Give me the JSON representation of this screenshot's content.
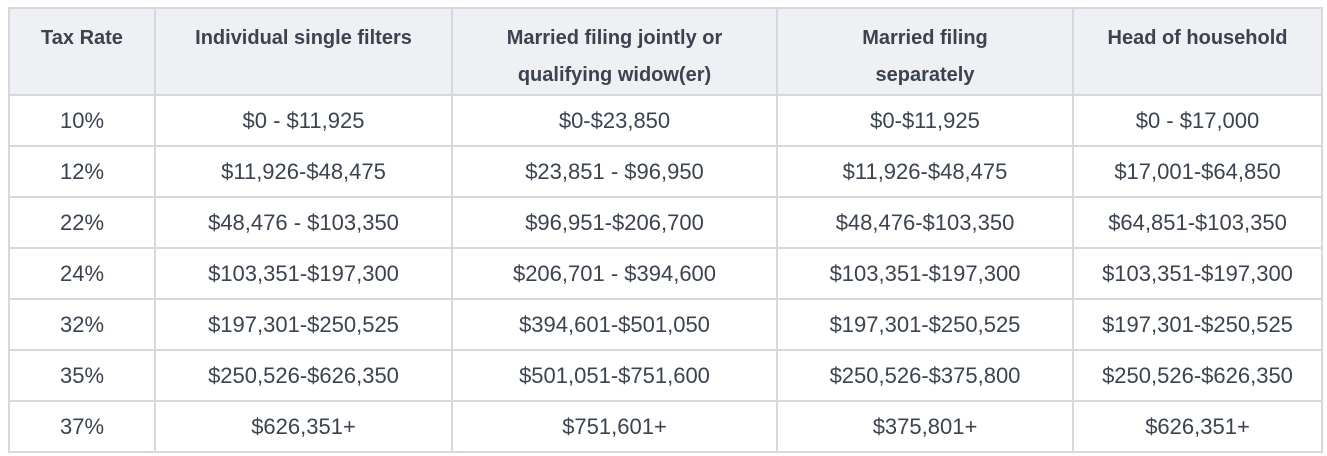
{
  "table": {
    "header": [
      "Tax Rate",
      "Individual single filters",
      "Married filing jointly or qualifying widow(er)",
      "Married filing separately",
      "Head of household"
    ],
    "rows": [
      [
        "10%",
        "$0 - $11,925",
        "$0-$23,850",
        "$0-$11,925",
        "$0 - $17,000"
      ],
      [
        "12%",
        "$11,926-$48,475",
        "$23,851 - $96,950",
        "$11,926-$48,475",
        "$17,001-$64,850"
      ],
      [
        "22%",
        "$48,476 - $103,350",
        "$96,951-$206,700",
        "$48,476-$103,350",
        "$64,851-$103,350"
      ],
      [
        "24%",
        "$103,351-$197,300",
        "$206,701 - $394,600",
        "$103,351-$197,300",
        "$103,351-$197,300"
      ],
      [
        "32%",
        "$197,301-$250,525",
        "$394,601-$501,050",
        "$197,301-$250,525",
        "$197,301-$250,525"
      ],
      [
        "35%",
        "$250,526-$626,350",
        "$501,051-$751,600",
        "$250,526-$375,800",
        "$250,526-$626,350"
      ],
      [
        "37%",
        "$626,351+",
        "$751,601+",
        "$375,801+",
        "$626,351+"
      ]
    ]
  }
}
